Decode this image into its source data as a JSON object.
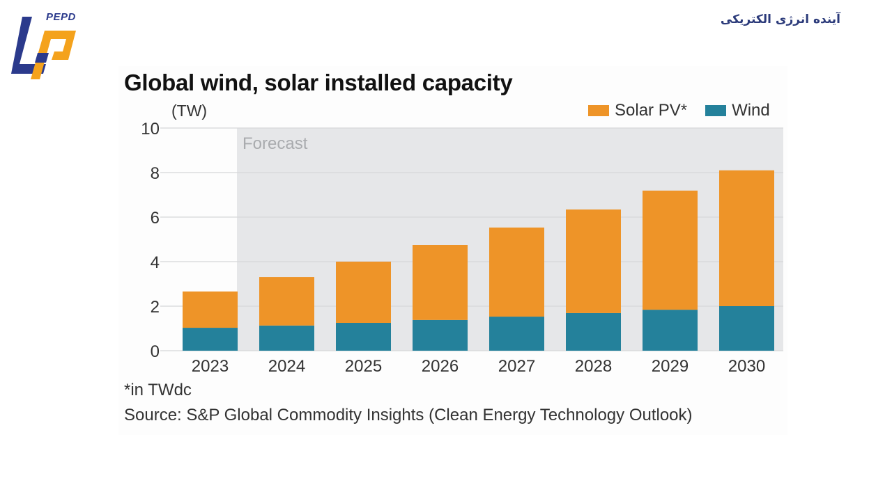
{
  "header": {
    "logo_text": "PEPD",
    "logo_icon": "pepd-logo-icon",
    "site_title_fa": "آینده انرژی الکتریکی",
    "brand_colors": {
      "blue": "#2b3a8c",
      "orange": "#f4a21c"
    }
  },
  "chart_data": {
    "type": "bar",
    "stacked": true,
    "title": "Global wind, solar installed capacity",
    "ylabel": "(TW)",
    "xlabel": "",
    "ylim": [
      0,
      10
    ],
    "yticks": [
      0,
      2,
      4,
      6,
      8,
      10
    ],
    "grid": true,
    "categories": [
      "2023",
      "2024",
      "2025",
      "2026",
      "2027",
      "2028",
      "2029",
      "2030"
    ],
    "series": [
      {
        "name": "Wind",
        "color": "#24819b",
        "values": [
          1.03,
          1.13,
          1.25,
          1.38,
          1.53,
          1.69,
          1.84,
          2.0
        ]
      },
      {
        "name": "Solar PV*",
        "color": "#ee9428",
        "values": [
          1.63,
          2.18,
          2.75,
          3.37,
          4.0,
          4.65,
          5.35,
          6.1
        ]
      }
    ],
    "totals": [
      2.66,
      3.31,
      4.0,
      4.75,
      5.53,
      6.34,
      7.19,
      8.1
    ],
    "legend": {
      "placement": "top-right",
      "order": [
        "Solar PV*",
        "Wind"
      ]
    },
    "annotation": {
      "text": "Forecast",
      "range": [
        "2024",
        "2030"
      ],
      "shade_color": "#e6e7e9"
    },
    "footnote": "*in TWdc",
    "source": "Source: S&P Global Commodity Insights (Clean Energy Technology Outlook)"
  }
}
